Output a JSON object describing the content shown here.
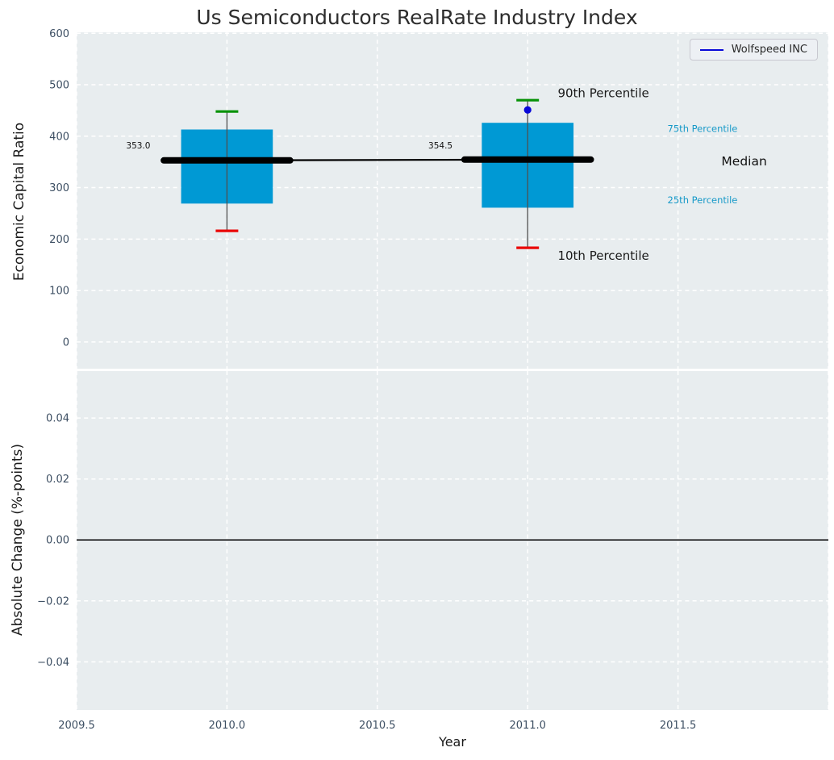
{
  "chart_data": {
    "type": "boxplot",
    "title": "Us Semiconductors RealRate Industry Index",
    "xlabel": "Year",
    "legend": {
      "label": "Wolfspeed INC",
      "position": "upper right"
    },
    "colors": {
      "box_fill": "#0099d4",
      "cap_top": "#069206",
      "cap_bottom": "#ea0707",
      "whisker": "#4f4f4f",
      "median": "#000000",
      "point": "#0808d8",
      "grid": "#ffffff",
      "panel_bg": "#e8edef",
      "tick_label": "#3d4f63",
      "annotation_cyan": "#1699c8",
      "zero_line": "#000000"
    },
    "panels": [
      {
        "name": "economic-capital-ratio",
        "ylabel": "Economic Capital Ratio",
        "xlim": [
          2009.5,
          2012.0
        ],
        "ylim": [
          -52,
          602
        ],
        "yticks": [
          600,
          500,
          400,
          300,
          200,
          100,
          0
        ],
        "ytick_labels": [
          "600",
          "500",
          "400",
          "300",
          "200",
          "100",
          "0"
        ],
        "xgrid": [
          2009.5,
          2010.0,
          2010.5,
          2011.0,
          2011.5,
          2012.0
        ],
        "grid": "white dashed",
        "box_width": 0.305,
        "cap_width": 0.075,
        "median_bar_halfwidth": 0.21,
        "boxes": [
          {
            "x": 2010,
            "p10": 216,
            "p25": 269,
            "median": 353.0,
            "p75": 413,
            "p90": 448
          },
          {
            "x": 2011,
            "p10": 183,
            "p25": 261,
            "median": 354.5,
            "p75": 426,
            "p90": 470
          }
        ],
        "median_line": [
          [
            2010,
            353.0
          ],
          [
            2011,
            354.5
          ]
        ],
        "points": [
          {
            "series": "Wolfspeed INC",
            "x": 2011,
            "y": 451
          }
        ],
        "annotations": [
          {
            "text": "353.0",
            "x": 2009.705,
            "y": 382,
            "size": 10.5,
            "anchor": "middle",
            "color": "#111111"
          },
          {
            "text": "354.5",
            "x": 2010.71,
            "y": 382,
            "size": 10.5,
            "anchor": "middle",
            "color": "#111111"
          },
          {
            "text": "90th Percentile",
            "x": 2011.1,
            "y": 484,
            "size": 15,
            "anchor": "start",
            "color": "#1a1a1a"
          },
          {
            "text": "10th Percentile",
            "x": 2011.1,
            "y": 168,
            "size": 15,
            "anchor": "start",
            "color": "#1a1a1a"
          },
          {
            "text": "75th Percentile",
            "x": 2011.465,
            "y": 415,
            "size": 11.5,
            "anchor": "start",
            "color": "#1699c8"
          },
          {
            "text": "25th Percentile",
            "x": 2011.465,
            "y": 276,
            "size": 11.5,
            "anchor": "start",
            "color": "#1699c8"
          },
          {
            "text": "Median",
            "x": 2011.72,
            "y": 352,
            "size": 15.5,
            "anchor": "middle",
            "color": "#111111"
          }
        ]
      },
      {
        "name": "absolute-change",
        "ylabel": "Absolute Change (%-points)",
        "xlim": [
          2009.5,
          2012.0
        ],
        "ylim": [
          -0.0558,
          0.0554
        ],
        "yticks": [
          0.04,
          0.02,
          0,
          -0.02,
          -0.04
        ],
        "ytick_labels": [
          "0.04",
          "0.02",
          "0.00",
          "−0.02",
          "−0.04"
        ],
        "xgrid": [
          2009.5,
          2010.0,
          2010.5,
          2011.0,
          2011.5,
          2012.0
        ],
        "xticks": [
          2009.5,
          2010.0,
          2010.5,
          2011.0,
          2011.5
        ],
        "xtick_labels": [
          "2009.5",
          "2010.0",
          "2010.5",
          "2011.0",
          "2011.5"
        ],
        "zero_line": 0.0,
        "grid": "white dashed"
      }
    ]
  }
}
